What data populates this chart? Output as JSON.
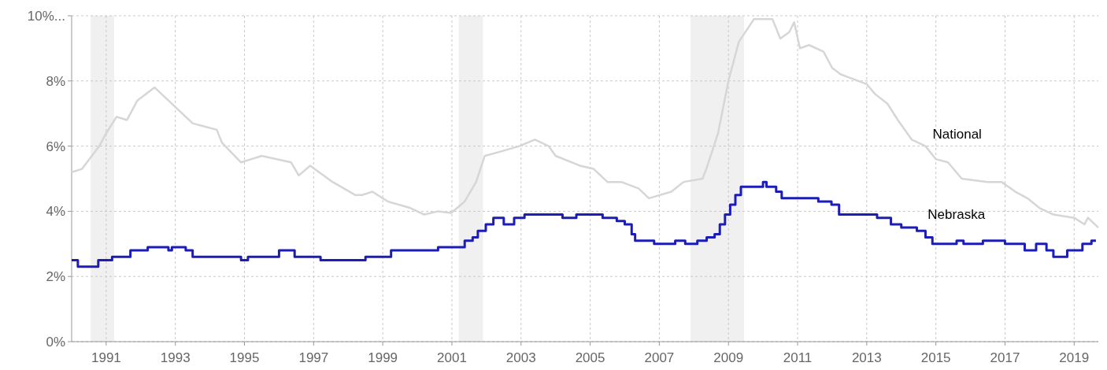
{
  "chart_data": {
    "type": "step",
    "xlim": [
      1990,
      2019.7
    ],
    "xticks": [
      1991,
      1993,
      1995,
      1997,
      1999,
      2001,
      2003,
      2005,
      2007,
      2009,
      2011,
      2013,
      2015,
      2017,
      2019
    ],
    "ylim": [
      0,
      10
    ],
    "yticks": [
      {
        "value": 0,
        "label": "0%"
      },
      {
        "value": 2,
        "label": "2%"
      },
      {
        "value": 4,
        "label": "4%"
      },
      {
        "value": 6,
        "label": "6%"
      },
      {
        "value": 8,
        "label": "8%"
      },
      {
        "value": 10,
        "label": "10%..."
      }
    ],
    "grid": true,
    "line_style": "solid",
    "marker": "none",
    "bands": [
      {
        "axis": "x",
        "from": 1990.55,
        "to": 1991.23,
        "color": "#f0f0f0"
      },
      {
        "axis": "x",
        "from": 2001.2,
        "to": 2001.9,
        "color": "#f0f0f0"
      },
      {
        "axis": "x",
        "from": 2007.9,
        "to": 2009.45,
        "color": "#f0f0f0"
      }
    ],
    "series": [
      {
        "name": "National",
        "type": "line",
        "color": "#d6d6d6",
        "x": [
          1990.0,
          1990.3,
          1990.8,
          1991.0,
          1991.3,
          1991.6,
          1991.9,
          1992.4,
          1992.8,
          1993.1,
          1993.5,
          1994.2,
          1994.35,
          1994.9,
          1995.2,
          1995.5,
          1996.35,
          1996.57,
          1996.9,
          1997.55,
          1998.2,
          1998.4,
          1998.7,
          1999.15,
          1999.8,
          2000.2,
          2000.6,
          2000.98,
          2001.37,
          2001.7,
          2001.95,
          2002.3,
          2002.95,
          2003.4,
          2003.8,
          2004.0,
          2004.7,
          2005.1,
          2005.5,
          2005.9,
          2006.4,
          2006.7,
          2007.35,
          2007.7,
          2008.25,
          2008.36,
          2008.7,
          2009.0,
          2009.3,
          2009.74,
          2010.27,
          2010.5,
          2010.76,
          2010.9,
          2011.07,
          2011.33,
          2011.75,
          2012.0,
          2012.25,
          2012.5,
          2013.0,
          2013.24,
          2013.6,
          2013.9,
          2014.3,
          2014.7,
          2015.0,
          2015.35,
          2015.75,
          2016.5,
          2016.9,
          2017.3,
          2017.65,
          2018.0,
          2018.4,
          2019.0,
          2019.3,
          2019.4,
          2019.7
        ],
        "values": [
          5.2,
          5.3,
          6.0,
          6.4,
          6.9,
          6.8,
          7.4,
          7.8,
          7.4,
          7.1,
          6.7,
          6.5,
          6.1,
          5.5,
          5.6,
          5.7,
          5.5,
          5.1,
          5.4,
          4.9,
          4.5,
          4.5,
          4.6,
          4.3,
          4.1,
          3.9,
          4.0,
          3.95,
          4.3,
          4.9,
          5.7,
          5.8,
          6.0,
          6.2,
          6.0,
          5.7,
          5.4,
          5.3,
          4.9,
          4.9,
          4.7,
          4.4,
          4.6,
          4.9,
          5.0,
          5.3,
          6.4,
          8.0,
          9.2,
          9.9,
          9.9,
          9.3,
          9.5,
          9.8,
          9.0,
          9.1,
          8.9,
          8.4,
          8.2,
          8.1,
          7.9,
          7.6,
          7.3,
          6.8,
          6.2,
          6.0,
          5.6,
          5.5,
          5.0,
          4.9,
          4.9,
          4.6,
          4.4,
          4.1,
          3.9,
          3.8,
          3.6,
          3.8,
          3.5
        ]
      },
      {
        "name": "Nebraska",
        "color": "#1c1cb8",
        "x": [
          1990.0,
          1990.18,
          1990.77,
          1991.17,
          1991.7,
          1992.2,
          1992.8,
          1992.9,
          1993.3,
          1993.5,
          1994.9,
          1995.1,
          1996.0,
          1996.45,
          1997.2,
          1998.5,
          1999.24,
          2000.6,
          2001.37,
          2001.6,
          2001.75,
          2001.98,
          2002.2,
          2002.5,
          2002.8,
          2003.1,
          2004.2,
          2004.6,
          2005.36,
          2005.77,
          2006.0,
          2006.2,
          2006.3,
          2006.85,
          2007.46,
          2007.75,
          2008.1,
          2008.37,
          2008.6,
          2008.75,
          2008.9,
          2009.05,
          2009.2,
          2009.36,
          2010.0,
          2010.1,
          2010.38,
          2010.54,
          2011.6,
          2011.98,
          2012.2,
          2013.3,
          2013.7,
          2014.0,
          2014.45,
          2014.7,
          2014.9,
          2015.6,
          2015.8,
          2016.36,
          2017.0,
          2017.57,
          2017.9,
          2018.2,
          2018.4,
          2018.55,
          2018.8,
          2019.24,
          2019.5,
          2019.63
        ],
        "values": [
          2.5,
          2.3,
          2.5,
          2.6,
          2.8,
          2.9,
          2.8,
          2.9,
          2.8,
          2.6,
          2.5,
          2.6,
          2.8,
          2.6,
          2.5,
          2.6,
          2.8,
          2.9,
          3.1,
          3.2,
          3.4,
          3.6,
          3.8,
          3.6,
          3.8,
          3.9,
          3.8,
          3.9,
          3.8,
          3.7,
          3.6,
          3.3,
          3.1,
          3.0,
          3.1,
          3.0,
          3.1,
          3.2,
          3.3,
          3.6,
          3.9,
          4.2,
          4.5,
          4.75,
          4.9,
          4.75,
          4.6,
          4.4,
          4.3,
          4.2,
          3.9,
          3.8,
          3.6,
          3.5,
          3.4,
          3.2,
          3.0,
          3.1,
          3.0,
          3.1,
          3.0,
          2.8,
          3.0,
          2.8,
          2.6,
          2.6,
          2.8,
          3.0,
          3.1,
          3.1
        ]
      }
    ]
  }
}
